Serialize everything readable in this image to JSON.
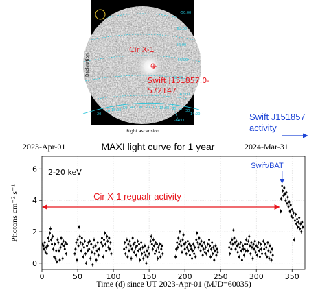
{
  "colors": {
    "annotation_red": "#e8141b",
    "annotation_blue": "#1f46d6",
    "sky_ring": "#22c3d9",
    "map_background": "#000000",
    "points": "#000000"
  },
  "skymap": {
    "sources": [
      "Cir X-1",
      "Swift J151857.0-572147"
    ],
    "source_label_lines": [
      "Swift J151857.0-",
      "572147"
    ],
    "dec_ticks": [
      "-50:00",
      "-52:00",
      "-54:00",
      "-56:00",
      "-58:00",
      "-62:00",
      "-64:00"
    ],
    "ra_ticks": [
      "20",
      "10",
      "15:00",
      "50",
      "40",
      "30",
      "20",
      "10",
      "15:00",
      "50",
      "40",
      "30",
      "14:20"
    ],
    "xlabel": "Right ascension",
    "ylabel": "Declination"
  },
  "annotations": {
    "swift_activity": [
      "Swift J151857",
      "activity"
    ],
    "start_date": "2023-Apr-01",
    "end_date": "2024-Mar-31",
    "swift_bat": "Swift/BAT",
    "cirx1_activity": "Cir X-1 regualr activity",
    "band": "2-20 keV"
  },
  "chart_data": {
    "type": "scatter",
    "title": "MAXI light curve for 1 year",
    "xlabel": "Time (d) since UT 2023-Apr-01 (MJD=60035)",
    "ylabel": "Photons cm⁻² s⁻¹",
    "xlim": [
      0,
      368
    ],
    "ylim": [
      -0.4,
      6.8
    ],
    "xticks": [
      0,
      50,
      100,
      150,
      200,
      250,
      300,
      350
    ],
    "yticks": [
      0,
      2,
      4,
      6
    ],
    "grid": true,
    "cirx1_arrow_range": [
      0,
      333
    ],
    "bat_arrow_x": 336,
    "segments": [
      {
        "name": "cycle-1",
        "x": [
          1,
          2,
          3,
          4,
          5,
          6,
          7,
          8,
          9,
          10,
          11,
          12,
          13,
          14,
          15,
          16,
          17,
          18,
          19,
          20,
          21
        ],
        "y": [
          1.2,
          1.1,
          0.9,
          1.3,
          0.7,
          1.0,
          0.6,
          1.1,
          1.6,
          1.4,
          1.9,
          2.2,
          1.5,
          1.2,
          1.7,
          0.9,
          0.4,
          1.2,
          0.3,
          0.8,
          0.1
        ]
      },
      {
        "name": "cycle-1b",
        "x": [
          22,
          23,
          24,
          25,
          26,
          27,
          28,
          29,
          30,
          31,
          32,
          33,
          34,
          35
        ],
        "y": [
          1.5,
          1.3,
          0.8,
          0.2,
          1.0,
          1.6,
          1.2,
          0.3,
          1.4,
          1.1,
          0.9,
          1.3,
          0.6,
          1.2
        ]
      },
      {
        "name": "cycle-2",
        "x": [
          46,
          47,
          48,
          49,
          50,
          51,
          52,
          53,
          54,
          55,
          56,
          57,
          58,
          59,
          60,
          61,
          62,
          63,
          64,
          65
        ],
        "y": [
          0.6,
          0.9,
          1.3,
          0.2,
          1.5,
          1.1,
          2.3,
          1.7,
          1.3,
          0.8,
          1.6,
          1.2,
          0.4,
          1.0,
          1.4,
          0.6,
          0.0,
          1.1,
          0.8,
          1.3
        ]
      },
      {
        "name": "cycle-2b",
        "x": [
          66,
          67,
          68,
          69,
          70,
          71,
          72,
          73,
          74,
          75,
          76,
          77,
          78,
          79,
          80
        ],
        "y": [
          0.9,
          1.4,
          0.3,
          1.2,
          0.7,
          -0.1,
          1.0,
          1.5,
          0.6,
          1.1,
          0.2,
          0.8,
          1.3,
          0.5,
          0.9
        ]
      },
      {
        "name": "cycle-3",
        "x": [
          83,
          84,
          85,
          86,
          87,
          88,
          89,
          90,
          91,
          92,
          93,
          94,
          95,
          96,
          97
        ],
        "y": [
          1.3,
          1.6,
          1.1,
          0.4,
          1.5,
          1.9,
          1.2,
          0.8,
          1.7,
          1.4,
          1.0,
          1.6,
          0.9,
          1.3,
          0.6
        ]
      },
      {
        "name": "cycle-4",
        "x": [
          115,
          116,
          117,
          118,
          119,
          120,
          121,
          122,
          123,
          124,
          125,
          126,
          127,
          128,
          129,
          130,
          131,
          132,
          133,
          134
        ],
        "y": [
          0.9,
          1.3,
          0.6,
          1.0,
          1.5,
          0.4,
          1.2,
          0.8,
          1.4,
          1.1,
          0.3,
          0.9,
          1.6,
          1.2,
          0.7,
          1.3,
          1.0,
          0.5,
          1.1,
          1.4
        ]
      },
      {
        "name": "cycle-4b",
        "x": [
          135,
          136,
          137,
          138,
          139,
          140,
          141,
          142,
          143,
          144,
          145,
          146,
          147,
          148,
          149,
          150
        ],
        "y": [
          0.8,
          1.2,
          0.2,
          0.9,
          1.3,
          0.6,
          1.0,
          0.3,
          0.7,
          1.1,
          0.5,
          0.0,
          0.8,
          0.4,
          1.0,
          0.6
        ]
      },
      {
        "name": "cycle-5",
        "x": [
          152,
          153,
          154,
          155,
          156,
          157,
          158,
          159,
          160,
          161,
          162,
          163,
          164,
          165,
          166,
          167,
          168,
          169
        ],
        "y": [
          1.4,
          1.7,
          1.2,
          0.9,
          1.5,
          1.1,
          0.6,
          1.3,
          0.8,
          1.2,
          0.3,
          1.0,
          0.7,
          1.2,
          0.4,
          0.9,
          1.1,
          0.6
        ]
      },
      {
        "name": "cycle-6",
        "x": [
          187,
          188,
          189,
          190,
          191,
          192,
          193,
          194,
          195,
          196,
          197,
          198,
          199,
          200,
          201,
          202,
          203,
          204,
          205,
          206,
          207,
          208,
          209,
          210,
          211,
          212,
          213,
          214,
          215
        ],
        "y": [
          0.4,
          0.9,
          1.3,
          1.0,
          1.6,
          1.2,
          2.0,
          1.4,
          1.1,
          0.7,
          1.5,
          1.8,
          1.2,
          0.9,
          1.3,
          0.6,
          1.0,
          1.4,
          0.8,
          1.2,
          0.5,
          1.1,
          0.9,
          0.3,
          0.8,
          1.2,
          0.6,
          1.0,
          0.4
        ]
      },
      {
        "name": "cycle-6b",
        "x": [
          216,
          217,
          218,
          219,
          220,
          221,
          222,
          223,
          224,
          225,
          226,
          227,
          228,
          229,
          230
        ],
        "y": [
          1.5,
          1.9,
          1.3,
          1.0,
          1.6,
          1.2,
          0.8,
          1.4,
          1.1,
          0.5,
          0.9,
          1.3,
          0.7,
          1.0,
          0.6
        ]
      },
      {
        "name": "cycle-7",
        "x": [
          232,
          233,
          234,
          235,
          236,
          237,
          238,
          239,
          240,
          241,
          242,
          243,
          244,
          245,
          246
        ],
        "y": [
          1.2,
          0.8,
          1.5,
          1.1,
          0.4,
          0.9,
          1.3,
          0.6,
          1.0,
          0.2,
          0.8,
          1.1,
          0.5,
          0.9,
          0.7
        ]
      },
      {
        "name": "cycle-8",
        "x": [
          262,
          263,
          264,
          265,
          266,
          267,
          268,
          269,
          270,
          271,
          272,
          273,
          274,
          275,
          276,
          277,
          278,
          279,
          280,
          281,
          282,
          283,
          284,
          285
        ],
        "y": [
          1.0,
          0.6,
          1.3,
          0.9,
          1.5,
          1.2,
          2.1,
          1.6,
          1.3,
          0.9,
          1.4,
          1.1,
          0.7,
          1.2,
          0.4,
          1.0,
          1.3,
          0.8,
          0.2,
          1.1,
          0.9,
          0.5,
          1.2,
          0.8
        ]
      },
      {
        "name": "cycle-9",
        "x": [
          286,
          287,
          288,
          289,
          290,
          291,
          292,
          293,
          294,
          295,
          296,
          297,
          298,
          299,
          300,
          301,
          302,
          303,
          304,
          305,
          306,
          307,
          308
        ],
        "y": [
          1.5,
          1.2,
          0.8,
          1.4,
          1.7,
          1.1,
          0.6,
          1.3,
          1.0,
          0.3,
          1.2,
          0.9,
          1.4,
          0.7,
          1.1,
          0.5,
          1.0,
          1.3,
          0.8,
          0.4,
          1.2,
          0.9,
          0.6
        ]
      },
      {
        "name": "cycle-10",
        "x": [
          310,
          311,
          312,
          313,
          314,
          315,
          316,
          317,
          318,
          319,
          320,
          321,
          322,
          323
        ],
        "y": [
          1.4,
          0.9,
          1.2,
          0.6,
          1.0,
          0.4,
          1.3,
          0.8,
          0.3,
          1.1,
          0.7,
          0.2,
          0.9,
          0.5
        ]
      },
      {
        "name": "outburst",
        "x": [
          334,
          335,
          336,
          337,
          338,
          339,
          340,
          341,
          342,
          343,
          344,
          345,
          346,
          347,
          348,
          349,
          350,
          351,
          352,
          353,
          354,
          355,
          356,
          357,
          358,
          359,
          360,
          361,
          362,
          363,
          364,
          365
        ],
        "y": [
          3.3,
          4.1,
          4.9,
          4.6,
          4.3,
          4.8,
          4.4,
          4.0,
          4.5,
          3.8,
          4.2,
          3.6,
          3.9,
          3.3,
          3.7,
          3.0,
          3.4,
          2.9,
          3.2,
          1.5,
          2.7,
          3.1,
          2.5,
          2.8,
          2.3,
          2.6,
          2.9,
          2.2,
          2.5,
          2.0,
          2.6,
          2.3
        ]
      }
    ]
  }
}
